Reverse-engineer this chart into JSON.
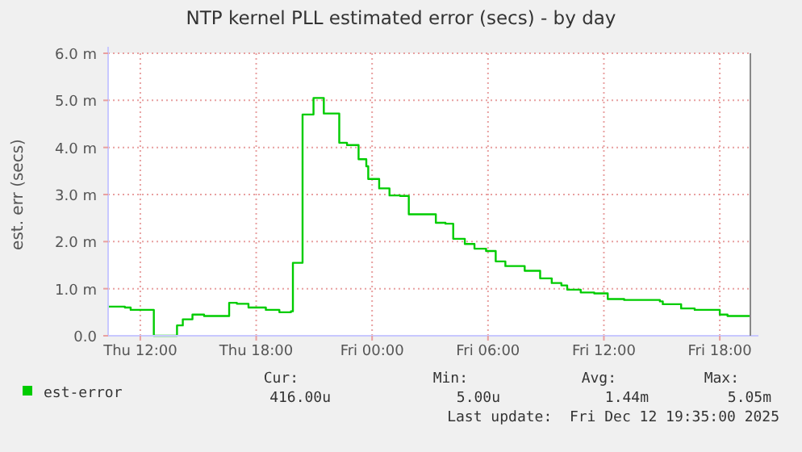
{
  "chart_data": {
    "type": "step",
    "title": "NTP kernel PLL estimated error (secs) - by day",
    "ylabel": "est. err (secs)",
    "x": [
      "2025-12-11T10:20",
      "2025-12-11T11:12",
      "2025-12-11T11:30",
      "2025-12-11T12:34",
      "2025-12-11T12:42",
      "2025-12-11T13:40",
      "2025-12-11T13:54",
      "2025-12-11T14:12",
      "2025-12-11T14:42",
      "2025-12-11T15:18",
      "2025-12-11T16:24",
      "2025-12-11T16:36",
      "2025-12-11T17:00",
      "2025-12-11T17:36",
      "2025-12-11T18:30",
      "2025-12-11T19:12",
      "2025-12-11T19:48",
      "2025-12-11T19:54",
      "2025-12-11T20:12",
      "2025-12-11T20:24",
      "2025-12-11T20:48",
      "2025-12-11T20:58",
      "2025-12-11T21:24",
      "2025-12-11T21:30",
      "2025-12-11T22:00",
      "2025-12-11T22:18",
      "2025-12-11T22:42",
      "2025-12-11T23:12",
      "2025-12-11T23:18",
      "2025-12-11T23:42",
      "2025-12-11T23:48",
      "2025-12-12T00:22",
      "2025-12-12T00:54",
      "2025-12-12T01:27",
      "2025-12-12T01:54",
      "2025-12-12T02:57",
      "2025-12-12T03:18",
      "2025-12-12T03:48",
      "2025-12-12T04:12",
      "2025-12-12T04:48",
      "2025-12-12T05:18",
      "2025-12-12T05:54",
      "2025-12-12T06:24",
      "2025-12-12T06:54",
      "2025-12-12T07:54",
      "2025-12-12T08:42",
      "2025-12-12T09:18",
      "2025-12-12T09:48",
      "2025-12-12T10:06",
      "2025-12-12T10:48",
      "2025-12-12T11:30",
      "2025-12-12T12:12",
      "2025-12-12T13:03",
      "2025-12-12T14:54",
      "2025-12-12T15:03",
      "2025-12-12T16:00",
      "2025-12-12T16:42",
      "2025-12-12T18:00",
      "2025-12-12T18:24",
      "2025-12-12T19:35"
    ],
    "series": [
      {
        "name": "est-error",
        "color": "#00cc00",
        "values": [
          0.62,
          0.6,
          0.55,
          0.55,
          0,
          0,
          0.22,
          0.35,
          0.45,
          0.42,
          0.42,
          0.7,
          0.68,
          0.6,
          0.55,
          0.5,
          0.52,
          1.55,
          1.55,
          4.7,
          4.7,
          5.05,
          5.05,
          4.72,
          4.72,
          4.1,
          4.05,
          4.05,
          3.75,
          3.6,
          3.33,
          3.13,
          2.98,
          2.97,
          2.58,
          2.58,
          2.4,
          2.38,
          2.06,
          1.95,
          1.85,
          1.8,
          1.58,
          1.48,
          1.38,
          1.22,
          1.12,
          1.07,
          0.98,
          0.92,
          0.9,
          0.78,
          0.76,
          0.73,
          0.67,
          0.58,
          0.55,
          0.45,
          0.42,
          0.42
        ]
      }
    ],
    "xlim": [
      "2025-12-11T10:20",
      "2025-12-12T19:35"
    ],
    "xticks": [
      {
        "value": "2025-12-11T12:00",
        "label": "Thu 12:00"
      },
      {
        "value": "2025-12-11T18:00",
        "label": "Thu 18:00"
      },
      {
        "value": "2025-12-12T00:00",
        "label": "Fri 00:00"
      },
      {
        "value": "2025-12-12T06:00",
        "label": "Fri 06:00"
      },
      {
        "value": "2025-12-12T12:00",
        "label": "Fri 12:00"
      },
      {
        "value": "2025-12-12T18:00",
        "label": "Fri 18:00"
      }
    ],
    "ylim": [
      0,
      6
    ],
    "yticks": [
      {
        "value": 0,
        "label": "0.0"
      },
      {
        "value": 1,
        "label": "1.0 m"
      },
      {
        "value": 2,
        "label": "2.0 m"
      },
      {
        "value": 3,
        "label": "3.0 m"
      },
      {
        "value": 4,
        "label": "4.0 m"
      },
      {
        "value": 5,
        "label": "5.0 m"
      },
      {
        "value": 6,
        "label": "6.0 m"
      }
    ],
    "grid": true,
    "legend": "bottom",
    "line_style": "solid",
    "marker": "none",
    "annotations": [
      "Cur:",
      "Min:",
      "Avg:",
      "Max:",
      "416.00u",
      "5.00u",
      "1.44m",
      "5.05m",
      "Last update:  Fri Dec 12 19:35:00 2025"
    ]
  }
}
